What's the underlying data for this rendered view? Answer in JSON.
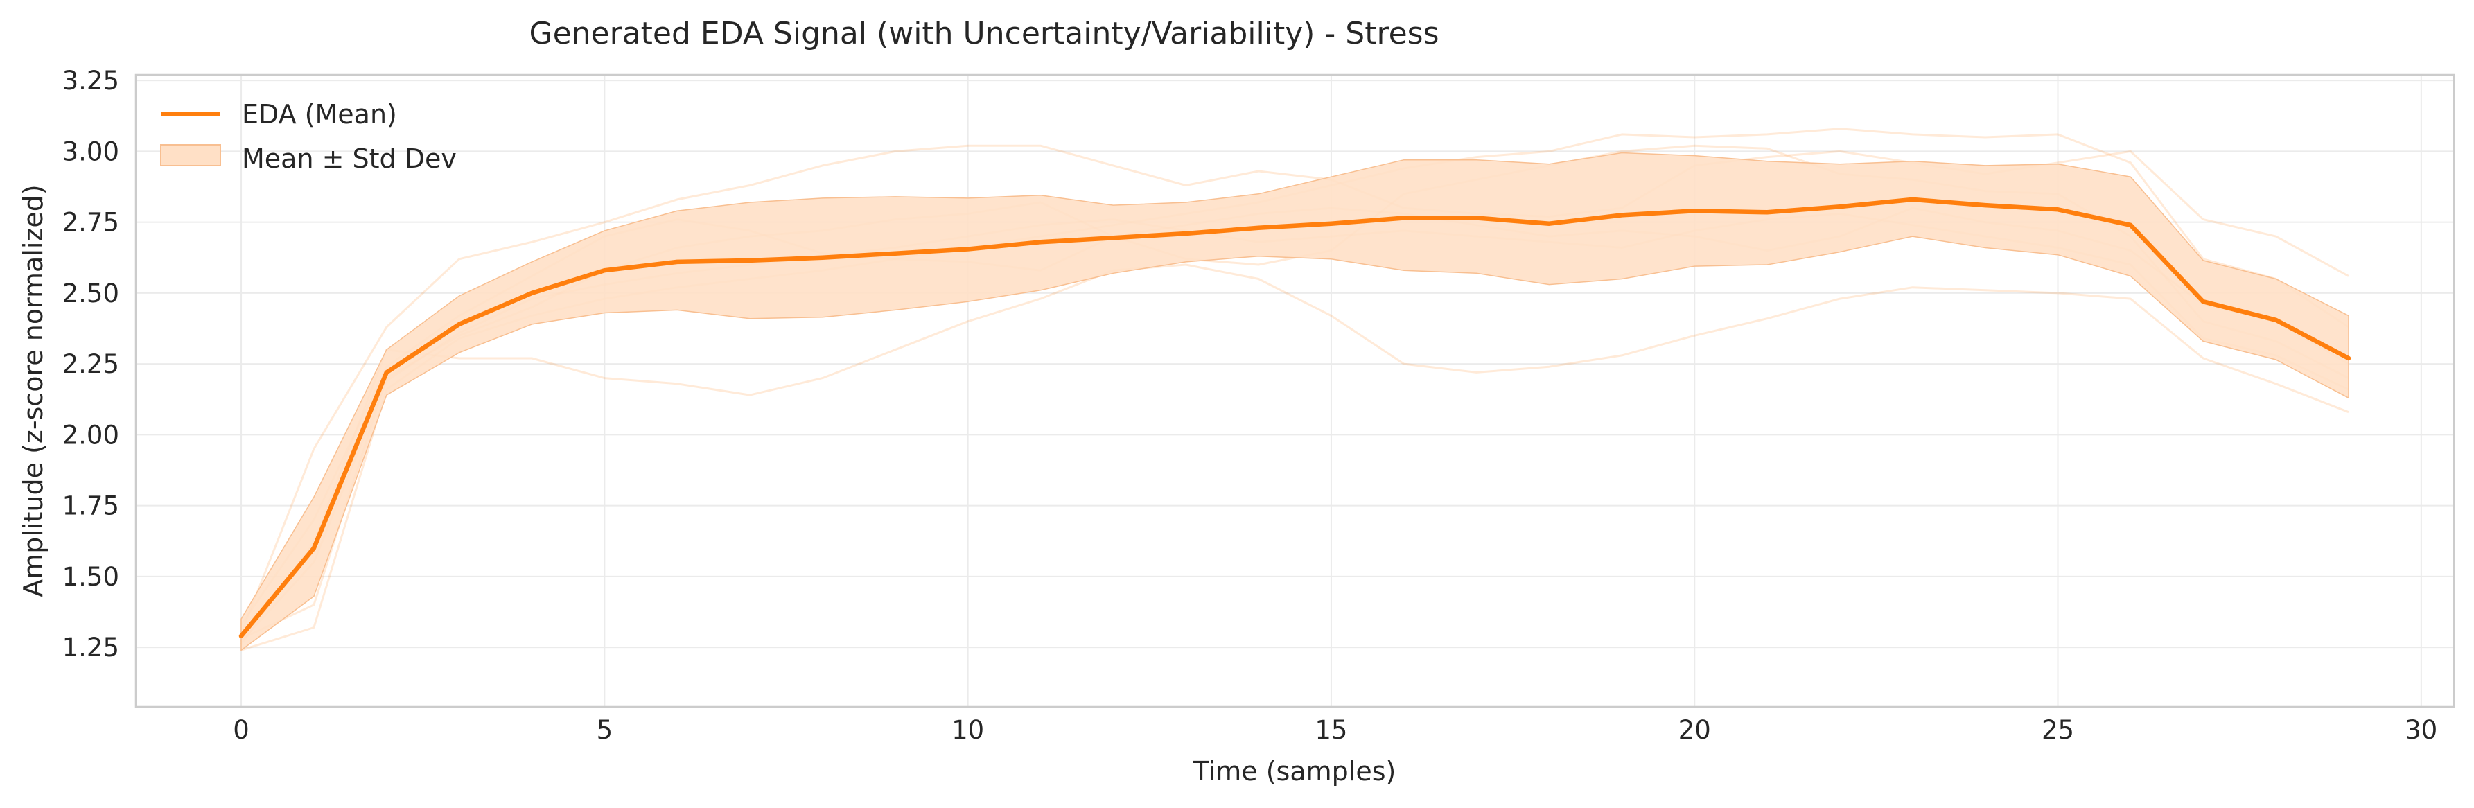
{
  "chart_data": {
    "type": "line",
    "title": "Generated EDA Signal (with Uncertainty/Variability) - Stress",
    "xlabel": "Time (samples)",
    "ylabel": "Amplitude (z-score normalized)",
    "xlim": [
      -1.45,
      30.45
    ],
    "ylim": [
      1.04,
      3.27
    ],
    "xticks": [
      0,
      5,
      10,
      15,
      20,
      25,
      30
    ],
    "yticks": [
      1.25,
      1.5,
      1.75,
      2.0,
      2.25,
      2.5,
      2.75,
      3.0,
      3.25
    ],
    "xtick_labels": [
      "0",
      "5",
      "10",
      "15",
      "20",
      "25",
      "30"
    ],
    "ytick_labels": [
      "1.25",
      "1.50",
      "1.75",
      "2.00",
      "2.25",
      "2.50",
      "2.75",
      "3.00",
      "3.25"
    ],
    "grid": true,
    "legend_position": "top-left",
    "colors": {
      "mean": "#ff7f0e",
      "band": "#ffe0c6",
      "band_edge": "#f8bf91",
      "samples": "#ff7f0e",
      "axes_edge": "#cccccc",
      "grid": "#ebebeb"
    },
    "x": [
      0,
      1,
      2,
      3,
      4,
      5,
      6,
      7,
      8,
      9,
      10,
      11,
      12,
      13,
      14,
      15,
      16,
      17,
      18,
      19,
      20,
      21,
      22,
      23,
      24,
      25,
      26,
      27,
      28,
      29
    ],
    "series": [
      {
        "name": "EDA (Mean)",
        "values": [
          1.29,
          1.6,
          2.22,
          2.39,
          2.5,
          2.58,
          2.61,
          2.615,
          2.625,
          2.64,
          2.655,
          2.68,
          2.695,
          2.71,
          2.73,
          2.745,
          2.765,
          2.765,
          2.745,
          2.775,
          2.79,
          2.785,
          2.805,
          2.83,
          2.81,
          2.795,
          2.74,
          2.47,
          2.405,
          2.27
        ]
      },
      {
        "name": "Mean ± Std Dev",
        "upper": [
          1.35,
          1.78,
          2.3,
          2.49,
          2.61,
          2.72,
          2.79,
          2.82,
          2.835,
          2.84,
          2.835,
          2.845,
          2.81,
          2.82,
          2.85,
          2.91,
          2.97,
          2.97,
          2.955,
          2.995,
          2.985,
          2.965,
          2.955,
          2.965,
          2.95,
          2.955,
          2.91,
          2.615,
          2.55,
          2.42
        ],
        "lower": [
          1.24,
          1.43,
          2.14,
          2.29,
          2.39,
          2.43,
          2.44,
          2.41,
          2.415,
          2.44,
          2.47,
          2.51,
          2.57,
          2.61,
          2.63,
          2.62,
          2.58,
          2.57,
          2.53,
          2.55,
          2.595,
          2.6,
          2.645,
          2.7,
          2.66,
          2.635,
          2.56,
          2.33,
          2.265,
          2.13
        ]
      }
    ],
    "sample_traces": [
      [
        1.3,
        1.95,
        2.38,
        2.62,
        2.68,
        2.75,
        2.83,
        2.88,
        2.95,
        3.0,
        3.02,
        3.02,
        2.95,
        2.88,
        2.93,
        2.9,
        2.8,
        2.78,
        2.77,
        2.8,
        2.95,
        2.98,
        3.0,
        2.96,
        2.92,
        2.96,
        3.0,
        2.76,
        2.7,
        2.56
      ],
      [
        1.26,
        1.62,
        2.3,
        2.27,
        2.27,
        2.2,
        2.18,
        2.14,
        2.2,
        2.3,
        2.4,
        2.48,
        2.58,
        2.6,
        2.55,
        2.42,
        2.25,
        2.22,
        2.24,
        2.28,
        2.35,
        2.41,
        2.48,
        2.52,
        2.51,
        2.5,
        2.48,
        2.27,
        2.18,
        2.08
      ],
      [
        1.28,
        1.4,
        2.2,
        2.35,
        2.45,
        2.58,
        2.66,
        2.7,
        2.72,
        2.76,
        2.78,
        2.82,
        2.7,
        2.62,
        2.6,
        2.65,
        2.85,
        2.9,
        2.95,
        3.0,
        3.02,
        3.01,
        2.92,
        2.9,
        2.86,
        2.85,
        2.7,
        2.4,
        2.33,
        2.2
      ],
      [
        1.33,
        1.7,
        2.24,
        2.42,
        2.56,
        2.7,
        2.76,
        2.72,
        2.64,
        2.62,
        2.61,
        2.58,
        2.7,
        2.74,
        2.78,
        2.8,
        2.78,
        2.74,
        2.7,
        2.72,
        2.7,
        2.65,
        2.7,
        2.8,
        2.75,
        2.72,
        2.65,
        2.46,
        2.4,
        2.25
      ],
      [
        1.24,
        1.32,
        2.16,
        2.34,
        2.42,
        2.48,
        2.52,
        2.55,
        2.58,
        2.62,
        2.66,
        2.7,
        2.74,
        2.78,
        2.82,
        2.88,
        2.94,
        2.98,
        3.0,
        3.06,
        3.05,
        3.06,
        3.08,
        3.06,
        3.05,
        3.06,
        2.96,
        2.62,
        2.55,
        2.38
      ],
      [
        1.27,
        1.55,
        2.19,
        2.36,
        2.48,
        2.53,
        2.57,
        2.6,
        2.63,
        2.66,
        2.7,
        2.74,
        2.76,
        2.72,
        2.68,
        2.7,
        2.72,
        2.7,
        2.68,
        2.66,
        2.72,
        2.76,
        2.78,
        2.74,
        2.7,
        2.66,
        2.6,
        2.34,
        2.28,
        2.16
      ]
    ]
  }
}
